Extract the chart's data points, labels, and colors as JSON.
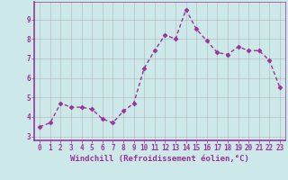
{
  "x": [
    0,
    1,
    2,
    3,
    4,
    5,
    6,
    7,
    8,
    9,
    10,
    11,
    12,
    13,
    14,
    15,
    16,
    17,
    18,
    19,
    20,
    21,
    22,
    23
  ],
  "y": [
    3.5,
    3.7,
    4.7,
    4.5,
    4.5,
    4.4,
    3.9,
    3.7,
    4.3,
    4.7,
    6.5,
    7.4,
    8.2,
    8.0,
    9.5,
    8.5,
    7.9,
    7.3,
    7.2,
    7.6,
    7.4,
    7.4,
    6.9,
    5.5
  ],
  "line_color": "#993399",
  "marker": "D",
  "marker_size": 2.5,
  "bg_color": "#cce8e8",
  "grid_color": "#aaaaaa",
  "xlabel": "Windchill (Refroidissement éolien,°C)",
  "xlim": [
    -0.5,
    23.5
  ],
  "ylim": [
    2.8,
    9.9
  ],
  "yticks": [
    3,
    4,
    5,
    6,
    7,
    8,
    9
  ],
  "xticks": [
    0,
    1,
    2,
    3,
    4,
    5,
    6,
    7,
    8,
    9,
    10,
    11,
    12,
    13,
    14,
    15,
    16,
    17,
    18,
    19,
    20,
    21,
    22,
    23
  ],
  "xtick_labels": [
    "0",
    "1",
    "2",
    "3",
    "4",
    "5",
    "6",
    "7",
    "8",
    "9",
    "10",
    "11",
    "12",
    "13",
    "14",
    "15",
    "16",
    "17",
    "18",
    "19",
    "20",
    "21",
    "22",
    "23"
  ],
  "line_color_hex": "#993399",
  "axis_color": "#993399",
  "tick_color": "#993399",
  "label_color": "#993399",
  "line_width": 1.0,
  "font_size_label": 6.5,
  "font_size_tick": 5.5
}
